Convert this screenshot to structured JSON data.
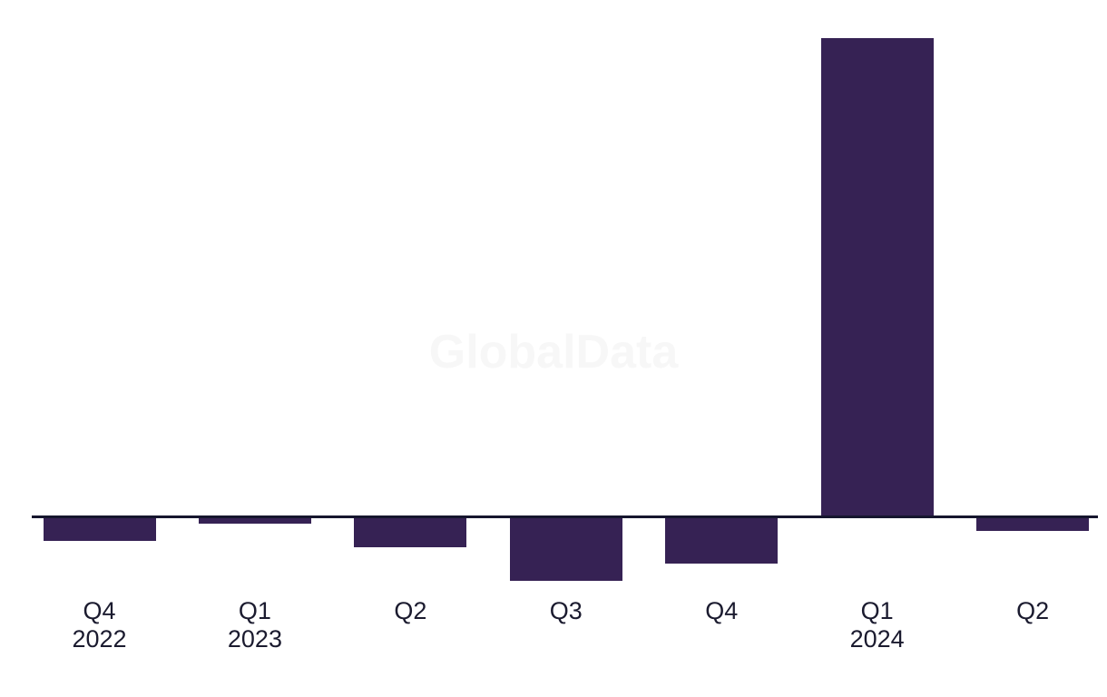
{
  "watermark": "GlobalData",
  "colors": {
    "background": "#ffffff",
    "bar": "#362254",
    "axis_line": "#16162e",
    "label_text": "#1b1b2f",
    "watermark_text": "#f7f7f7"
  },
  "chart_data": {
    "type": "bar",
    "title": "",
    "xlabel": "",
    "ylabel": "",
    "categories": [
      "Q4 2022",
      "Q1 2023",
      "Q2 2023",
      "Q3 2023",
      "Q4 2023",
      "Q1 2024",
      "Q2 2024"
    ],
    "tick_labels": [
      [
        "Q4",
        "2022"
      ],
      [
        "Q1",
        "2023"
      ],
      [
        "Q2"
      ],
      [
        "Q3"
      ],
      [
        "Q4"
      ],
      [
        "Q1",
        "2024"
      ],
      [
        "Q2"
      ]
    ],
    "values": [
      -5.1,
      -1.5,
      -6.4,
      -13.4,
      -9.7,
      100,
      -3.0
    ],
    "value_units": "relative index; chart shows no y-axis, gridlines or data labels — values normalized so tallest bar (Q1 2024) = 100",
    "baseline": 0,
    "ylim": [
      -15,
      100
    ],
    "grid": false,
    "legend": "none",
    "watermark": "GlobalData"
  }
}
